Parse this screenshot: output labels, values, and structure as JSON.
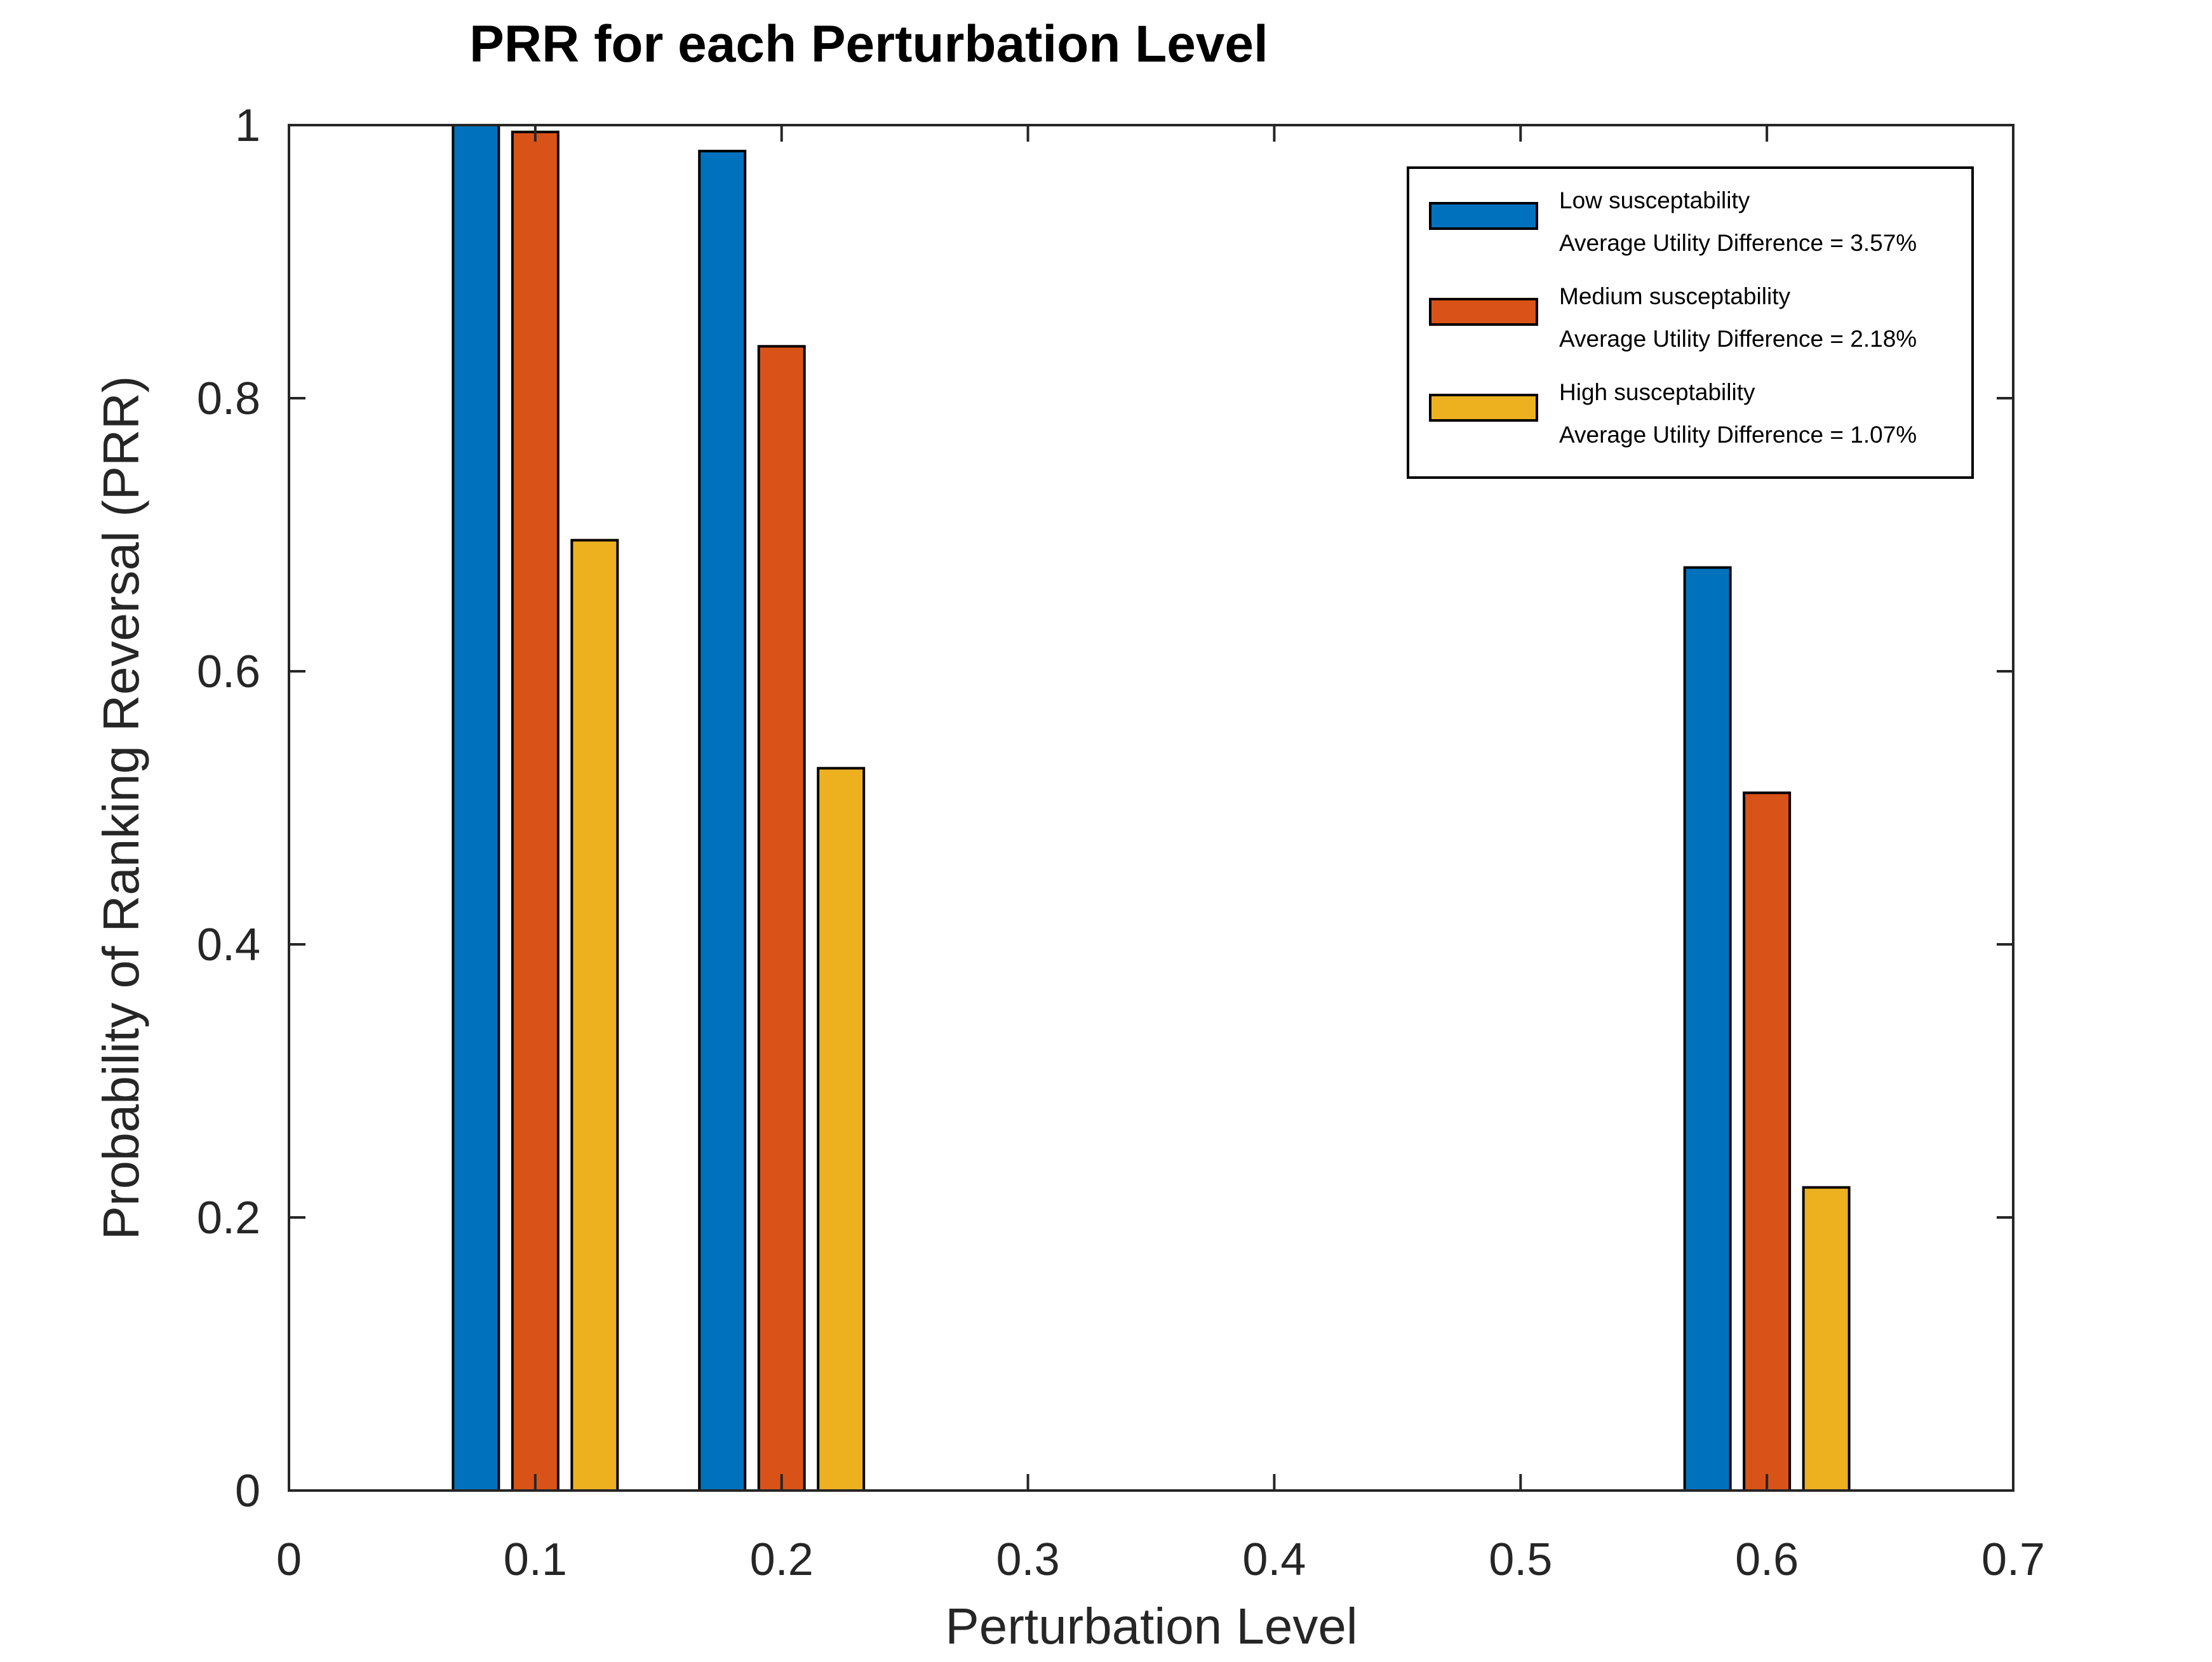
{
  "chart_data": {
    "type": "bar",
    "title": "PRR for each Perturbation Level",
    "xlabel": "Perturbation Level",
    "ylabel": "Probability of Ranking Reversal (PRR)",
    "xlim": [
      0,
      0.7
    ],
    "ylim": [
      0,
      1
    ],
    "xticks": [
      0,
      0.1,
      0.2,
      0.3,
      0.4,
      0.5,
      0.6,
      0.7
    ],
    "xtick_labels": [
      "0",
      "0.1",
      "0.2",
      "0.3",
      "0.4",
      "0.5",
      "0.6",
      "0.7"
    ],
    "yticks": [
      0,
      0.2,
      0.4,
      0.6,
      0.8,
      1
    ],
    "ytick_labels": [
      "0",
      "0.2",
      "0.4",
      "0.6",
      "0.8",
      "1"
    ],
    "x": [
      0.1,
      0.2,
      0.6
    ],
    "grid": false,
    "legend_position": "top-right",
    "series": [
      {
        "name": "Low susceptability",
        "note": "Average Utility Difference = 3.57%",
        "color": "#0072BD",
        "values": [
          1.0,
          0.981,
          0.676
        ]
      },
      {
        "name": "Medium susceptability",
        "note": "Average Utility Difference = 2.18%",
        "color": "#D95319",
        "values": [
          0.995,
          0.838,
          0.511
        ]
      },
      {
        "name": "High susceptability",
        "note": "Average Utility Difference = 1.07%",
        "color": "#EDB120",
        "values": [
          0.696,
          0.529,
          0.222
        ]
      }
    ]
  }
}
